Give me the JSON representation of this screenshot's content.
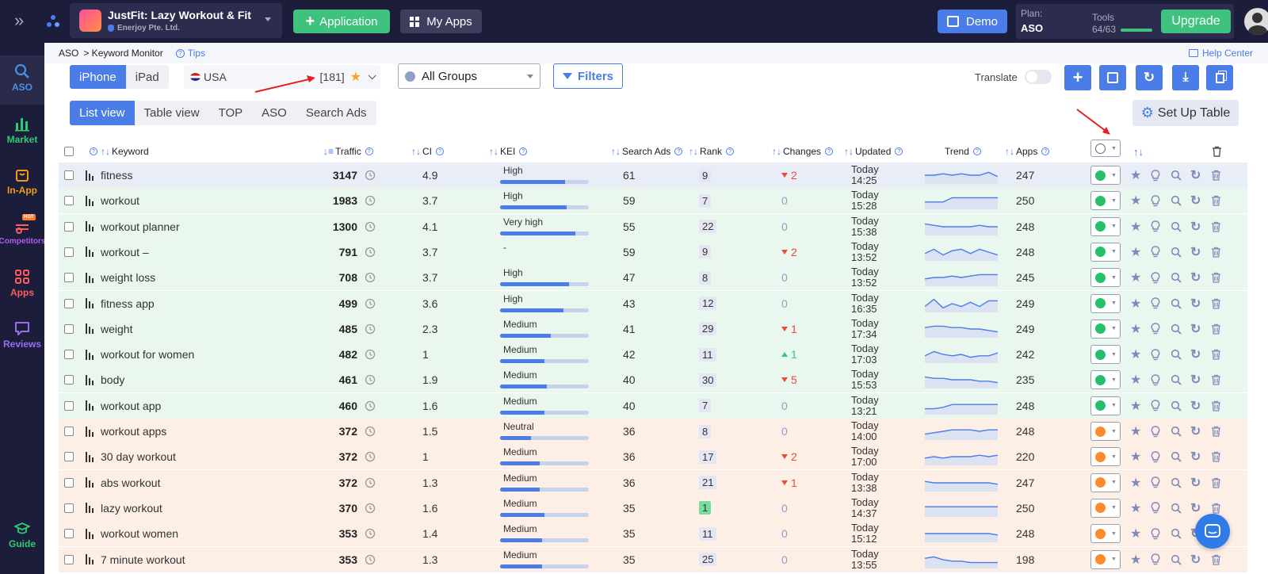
{
  "topbar": {
    "app_name": "JustFit: Lazy Workout & Fit",
    "developer": "Enerjoy Pte. Ltd.",
    "application_label": "Application",
    "my_apps_label": "My Apps",
    "demo_label": "Demo",
    "plan_label": "Plan:",
    "plan_value": "ASO",
    "tools_label": "Tools",
    "tools_value": "64/63",
    "upgrade_label": "Upgrade"
  },
  "sidebar": {
    "items": [
      {
        "label": "ASO",
        "color": "#4a90e2"
      },
      {
        "label": "Market",
        "color": "#2ecc71"
      },
      {
        "label": "In-App",
        "color": "#f39c12"
      },
      {
        "label": "Competitors",
        "color": "#b05cf0",
        "badge": "HOT"
      },
      {
        "label": "Apps",
        "color": "#ff5a5f"
      },
      {
        "label": "Reviews",
        "color": "#9a6cf0"
      },
      {
        "label": "Guide",
        "color": "#2ecc71"
      }
    ]
  },
  "breadcrumb": {
    "root": "ASO",
    "current": "> Keyword Monitor",
    "tips": "Tips",
    "help": "Help Center"
  },
  "devices": [
    "iPhone",
    "iPad"
  ],
  "country": {
    "name": "USA",
    "count": "[181]"
  },
  "groups": {
    "selected": "All Groups"
  },
  "filters_label": "Filters",
  "translate_label": "Translate",
  "views": [
    "List view",
    "Table view",
    "TOP",
    "ASO",
    "Search Ads"
  ],
  "setup_table_label": "Set Up Table",
  "columns": {
    "keyword": "Keyword",
    "traffic": "Traffic",
    "ci": "CI",
    "kei": "KEI",
    "search_ads": "Search Ads",
    "rank": "Rank",
    "changes": "Changes",
    "updated": "Updated",
    "trend": "Trend",
    "apps": "Apps"
  },
  "colors": {
    "green_row": "#e9f7ee",
    "orange_row": "#fdefe6",
    "accent": "#4a7de8",
    "up": "#2ecc71",
    "down": "#e74c3c"
  },
  "rows": [
    {
      "keyword": "fitness",
      "traffic": "3147",
      "ci": "4.9",
      "kei": "High",
      "kei_pct": 73,
      "ads": "61",
      "rank": "9",
      "change": "2",
      "dir": "down",
      "day": "Today",
      "time": "14:25",
      "apps": "247",
      "group": "green",
      "trend": [
        5,
        5,
        4,
        5,
        4,
        5,
        5,
        3,
        6
      ]
    },
    {
      "keyword": "workout",
      "traffic": "1983",
      "ci": "3.7",
      "kei": "High",
      "kei_pct": 75,
      "ads": "59",
      "rank": "7",
      "change": "0",
      "dir": "none",
      "day": "Today",
      "time": "15:28",
      "apps": "250",
      "group": "green",
      "trend": [
        6,
        6,
        6,
        3,
        3,
        3,
        3,
        3,
        3
      ]
    },
    {
      "keyword": "workout planner",
      "traffic": "1300",
      "ci": "4.1",
      "kei": "Very high",
      "kei_pct": 85,
      "ads": "55",
      "rank": "22",
      "change": "0",
      "dir": "none",
      "day": "Today",
      "time": "15:38",
      "apps": "248",
      "group": "green",
      "trend": [
        3,
        4,
        5,
        5,
        5,
        5,
        4,
        5,
        5
      ]
    },
    {
      "keyword": "workout –",
      "traffic": "791",
      "ci": "3.7",
      "kei": "-",
      "kei_pct": 0,
      "ads": "59",
      "rank": "9",
      "change": "2",
      "dir": "down",
      "day": "Today",
      "time": "13:52",
      "apps": "248",
      "group": "green",
      "trend": [
        6,
        3,
        7,
        4,
        3,
        6,
        3,
        5,
        7
      ]
    },
    {
      "keyword": "weight loss",
      "traffic": "708",
      "ci": "3.7",
      "kei": "High",
      "kei_pct": 78,
      "ads": "47",
      "rank": "8",
      "change": "0",
      "dir": "none",
      "day": "Today",
      "time": "13:52",
      "apps": "245",
      "group": "green",
      "trend": [
        6,
        5,
        5,
        4,
        5,
        4,
        3,
        3,
        3
      ]
    },
    {
      "keyword": "fitness app",
      "traffic": "499",
      "ci": "3.6",
      "kei": "High",
      "kei_pct": 71,
      "ads": "43",
      "rank": "12",
      "change": "0",
      "dir": "none",
      "day": "Today",
      "time": "16:35",
      "apps": "249",
      "group": "green",
      "trend": [
        7,
        2,
        8,
        5,
        7,
        4,
        7,
        3,
        3
      ]
    },
    {
      "keyword": "weight",
      "traffic": "485",
      "ci": "2.3",
      "kei": "Medium",
      "kei_pct": 57,
      "ads": "41",
      "rank": "29",
      "change": "1",
      "dir": "down",
      "day": "Today",
      "time": "17:34",
      "apps": "249",
      "group": "green",
      "trend": [
        4,
        3,
        3,
        4,
        4,
        5,
        5,
        6,
        7
      ]
    },
    {
      "keyword": "workout for women",
      "traffic": "482",
      "ci": "1",
      "kei": "Medium",
      "kei_pct": 50,
      "ads": "42",
      "rank": "11",
      "change": "1",
      "dir": "up",
      "day": "Today",
      "time": "17:03",
      "apps": "242",
      "group": "green",
      "trend": [
        6,
        3,
        5,
        6,
        5,
        7,
        6,
        6,
        4
      ]
    },
    {
      "keyword": "body",
      "traffic": "461",
      "ci": "1.9",
      "kei": "Medium",
      "kei_pct": 53,
      "ads": "40",
      "rank": "30",
      "change": "5",
      "dir": "down",
      "day": "Today",
      "time": "15:53",
      "apps": "235",
      "group": "green",
      "trend": [
        3,
        4,
        4,
        5,
        5,
        5,
        6,
        6,
        7
      ]
    },
    {
      "keyword": "workout app",
      "traffic": "460",
      "ci": "1.6",
      "kei": "Medium",
      "kei_pct": 50,
      "ads": "40",
      "rank": "7",
      "change": "0",
      "dir": "none",
      "day": "Today",
      "time": "13:21",
      "apps": "248",
      "group": "green",
      "trend": [
        7,
        7,
        6,
        4,
        4,
        4,
        4,
        4,
        4
      ]
    },
    {
      "keyword": "workout apps",
      "traffic": "372",
      "ci": "1.5",
      "kei": "Neutral",
      "kei_pct": 35,
      "ads": "36",
      "rank": "8",
      "change": "0",
      "dir": "none",
      "day": "Today",
      "time": "14:00",
      "apps": "248",
      "group": "orange",
      "trend": [
        7,
        6,
        5,
        4,
        4,
        4,
        5,
        4,
        4
      ]
    },
    {
      "keyword": "30 day workout",
      "traffic": "372",
      "ci": "1",
      "kei": "Medium",
      "kei_pct": 45,
      "ads": "36",
      "rank": "17",
      "change": "2",
      "dir": "down",
      "day": "Today",
      "time": "17:00",
      "apps": "220",
      "group": "orange",
      "trend": [
        6,
        5,
        6,
        5,
        5,
        5,
        4,
        5,
        4
      ]
    },
    {
      "keyword": "abs workout",
      "traffic": "372",
      "ci": "1.3",
      "kei": "Medium",
      "kei_pct": 45,
      "ads": "36",
      "rank": "21",
      "change": "1",
      "dir": "down",
      "day": "Today",
      "time": "13:38",
      "apps": "247",
      "group": "orange",
      "trend": [
        4,
        5,
        5,
        5,
        5,
        5,
        5,
        5,
        6
      ]
    },
    {
      "keyword": "lazy workout",
      "traffic": "370",
      "ci": "1.6",
      "kei": "Medium",
      "kei_pct": 50,
      "ads": "35",
      "rank": "1",
      "change": "0",
      "dir": "none",
      "day": "Today",
      "time": "14:37",
      "apps": "250",
      "group": "orange",
      "trend": [
        4,
        4,
        4,
        4,
        4,
        4,
        4,
        4,
        4
      ]
    },
    {
      "keyword": "workout women",
      "traffic": "353",
      "ci": "1.4",
      "kei": "Medium",
      "kei_pct": 47,
      "ads": "35",
      "rank": "11",
      "change": "0",
      "dir": "none",
      "day": "Today",
      "time": "15:12",
      "apps": "248",
      "group": "orange",
      "trend": [
        5,
        5,
        5,
        5,
        5,
        5,
        5,
        5,
        6
      ]
    },
    {
      "keyword": "7 minute workout",
      "traffic": "353",
      "ci": "1.3",
      "kei": "Medium",
      "kei_pct": 47,
      "ads": "35",
      "rank": "25",
      "change": "0",
      "dir": "none",
      "day": "Today",
      "time": "13:55",
      "apps": "198",
      "group": "orange",
      "trend": [
        4,
        3,
        5,
        6,
        6,
        7,
        7,
        7,
        7
      ]
    }
  ]
}
